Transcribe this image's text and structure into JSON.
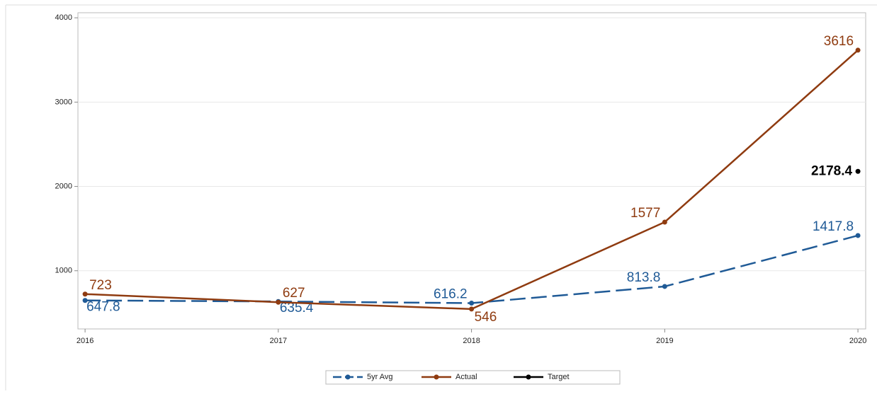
{
  "chart_data": {
    "type": "line",
    "x": [
      2016,
      2017,
      2018,
      2019,
      2020
    ],
    "series": [
      {
        "name": "5yr Avg",
        "color": "#1f5a96",
        "dashed": true,
        "values": [
          647.8,
          635.4,
          616.2,
          813.8,
          1417.8
        ]
      },
      {
        "name": "Actual",
        "color": "#8f3b10",
        "dashed": false,
        "values": [
          723,
          627,
          546,
          1577,
          3616
        ]
      },
      {
        "name": "Target",
        "color": "#000000",
        "dashed": false,
        "values": [
          null,
          null,
          null,
          null,
          2178.4
        ]
      }
    ],
    "xlim": [
      2015.963,
      2020.04
    ],
    "xticks": [
      2016,
      2017,
      2018,
      2019,
      2020
    ],
    "ylim": [
      310,
      4060
    ],
    "yticks": [
      1000,
      2000,
      3000,
      4000
    ],
    "grid": true,
    "legend": "bottom"
  }
}
